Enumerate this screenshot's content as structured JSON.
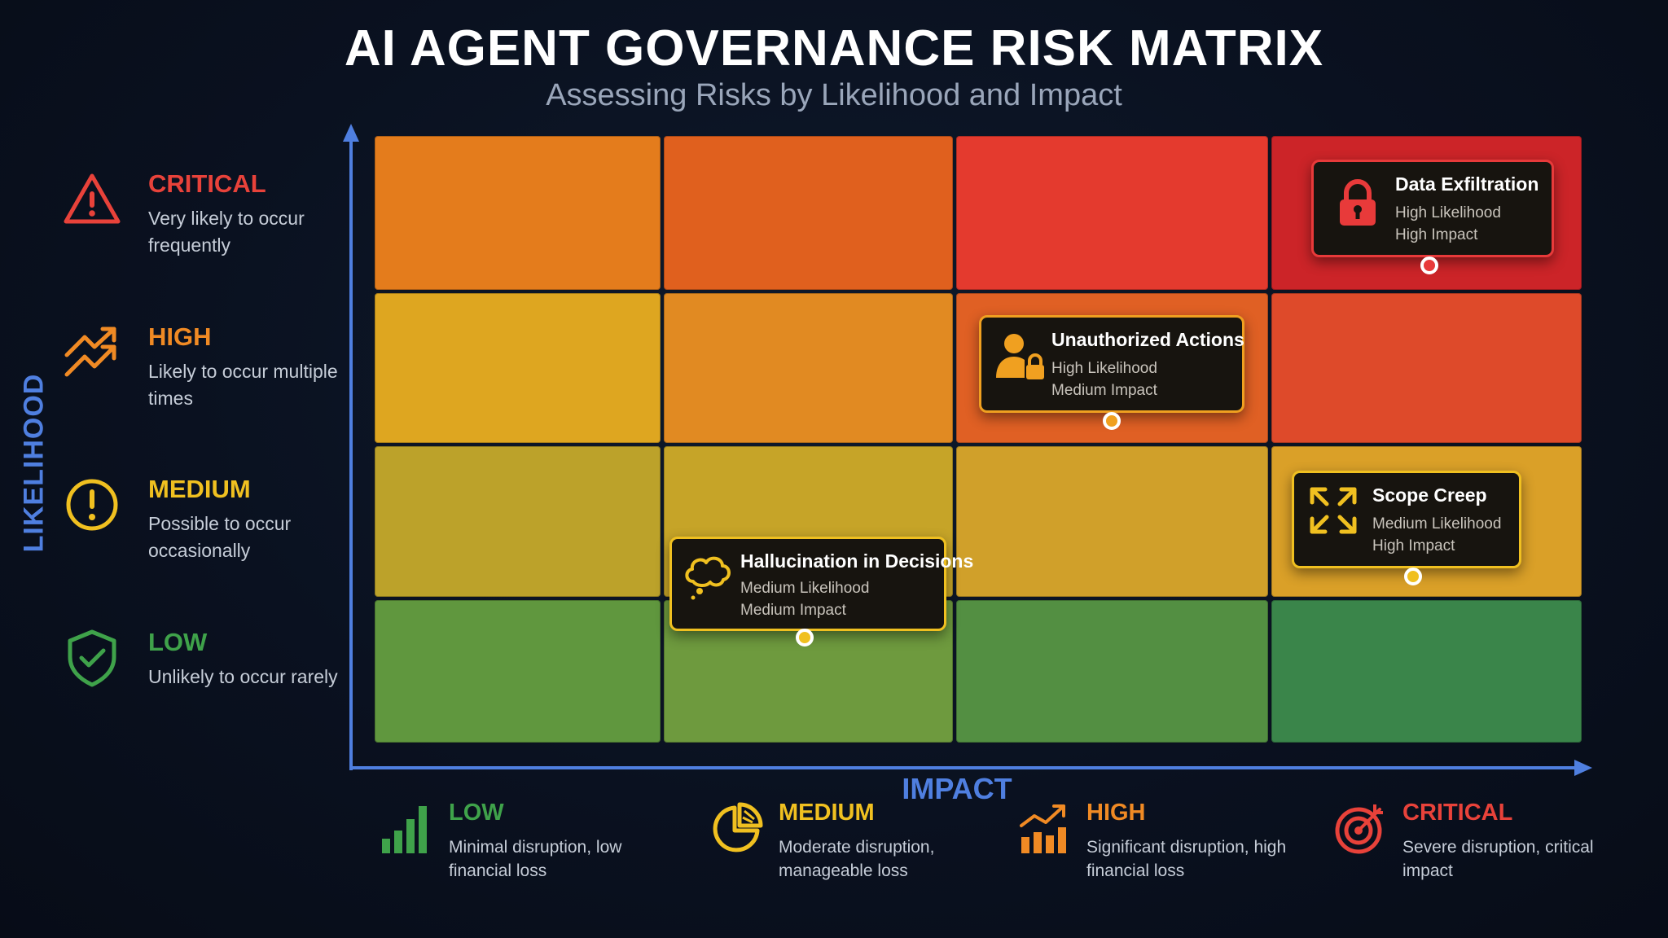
{
  "title": "AI AGENT GOVERNANCE RISK MATRIX",
  "subtitle": "Assessing Risks by Likelihood and Impact",
  "y_axis_label": "LIKELIHOOD",
  "x_axis_label": "IMPACT",
  "likelihood_levels": [
    {
      "level": "CRITICAL",
      "description": "Very likely to occur frequently",
      "color": "#e8423a",
      "icon": "warning-triangle-icon"
    },
    {
      "level": "HIGH",
      "description": "Likely to occur multiple times",
      "color": "#f08a24",
      "icon": "trend-up-arrow-icon"
    },
    {
      "level": "MEDIUM",
      "description": "Possible to occur occasionally",
      "color": "#f0c020",
      "icon": "exclamation-circle-icon"
    },
    {
      "level": "LOW",
      "description": "Unlikely to occur rarely",
      "color": "#3fa24a",
      "icon": "shield-check-icon"
    }
  ],
  "impact_levels": [
    {
      "level": "LOW",
      "description": "Minimal disruption, low financial loss",
      "color": "#3fa24a",
      "icon": "bar-chart-icon"
    },
    {
      "level": "MEDIUM",
      "description": "Moderate disruption, manageable loss",
      "color": "#f0c020",
      "icon": "pie-chart-icon"
    },
    {
      "level": "HIGH",
      "description": "Significant disruption, high financial loss",
      "color": "#f08a24",
      "icon": "rising-chart-icon"
    },
    {
      "level": "CRITICAL",
      "description": "Severe disruption, critical impact",
      "color": "#e8423a",
      "icon": "target-icon"
    }
  ],
  "matrix_colors": [
    [
      "#e47c1c",
      "#e0601e",
      "#e43a2e",
      "#cc2428"
    ],
    [
      "#dea620",
      "#e18a22",
      "#e06024",
      "#de4a2a"
    ],
    [
      "#bca22a",
      "#c6a428",
      "#d0a02a",
      "#daa028"
    ],
    [
      "#60973e",
      "#6e9a3e",
      "#538f42",
      "#3a854a"
    ]
  ],
  "risks": [
    {
      "name": "Data Exfiltration",
      "likelihood": "High Likelihood",
      "impact": "High Impact",
      "icon": "padlock-icon",
      "color": "#e83a3a"
    },
    {
      "name": "Unauthorized Actions",
      "likelihood": "High Likelihood",
      "impact": "Medium Impact",
      "icon": "user-lock-icon",
      "color": "#f0a020"
    },
    {
      "name": "Scope Creep",
      "likelihood": "Medium Likelihood",
      "impact": "High Impact",
      "icon": "expand-arrows-icon",
      "color": "#f0c020"
    },
    {
      "name": "Hallucination in Decisions",
      "likelihood": "Medium Likelihood",
      "impact": "Medium Impact",
      "icon": "thought-bubble-icon",
      "color": "#f0c020"
    }
  ]
}
